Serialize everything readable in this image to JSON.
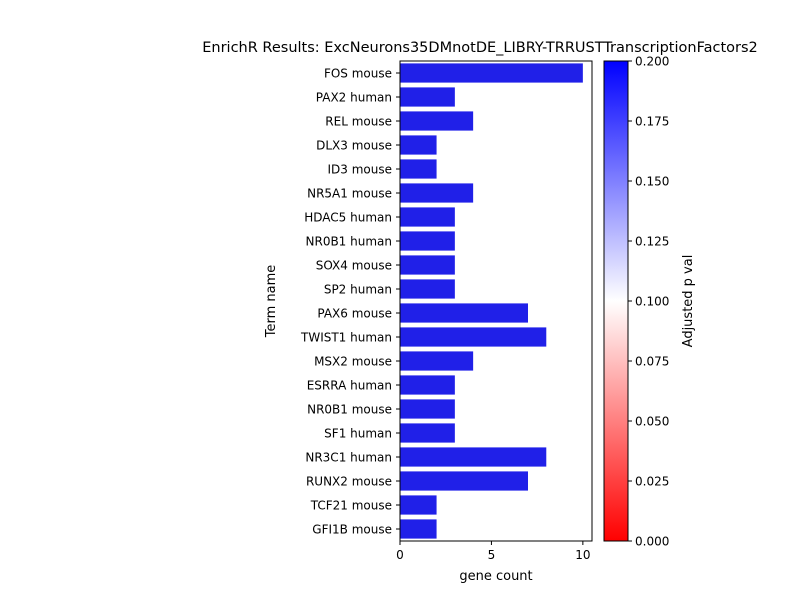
{
  "chart_data": {
    "type": "bar",
    "orientation": "horizontal",
    "title": "EnrichR Results: ExcNeurons35DMnotDE_LIBRY-TRRUSTTranscriptionFactors2",
    "xlabel": "gene count",
    "ylabel": "Term name",
    "xlim": [
      0,
      10.5
    ],
    "xticks": [
      0,
      5,
      10
    ],
    "categories": [
      "FOS mouse",
      "PAX2 human",
      "REL mouse",
      "DLX3 mouse",
      "ID3 mouse",
      "NR5A1 mouse",
      "HDAC5 human",
      "NR0B1 human",
      "SOX4 mouse",
      "SP2 human",
      "PAX6 mouse",
      "TWIST1 human",
      "MSX2 mouse",
      "ESRRA human",
      "NR0B1 mouse",
      "SF1 human",
      "NR3C1 human",
      "RUNX2 mouse",
      "TCF21 mouse",
      "GFI1B mouse"
    ],
    "values": [
      10,
      3,
      4,
      2,
      2,
      4,
      3,
      3,
      3,
      3,
      7,
      8,
      4,
      3,
      3,
      3,
      8,
      7,
      2,
      2
    ],
    "bar_color": "#2020e8",
    "grid": false,
    "colorbar": {
      "label": "Adjusted p val",
      "range": [
        0.0,
        0.2
      ],
      "ticks": [
        "0.000",
        "0.025",
        "0.050",
        "0.075",
        "0.100",
        "0.125",
        "0.150",
        "0.175",
        "0.200"
      ],
      "colors": [
        "#ff0000",
        "#ffffff",
        "#0000ff"
      ]
    }
  }
}
